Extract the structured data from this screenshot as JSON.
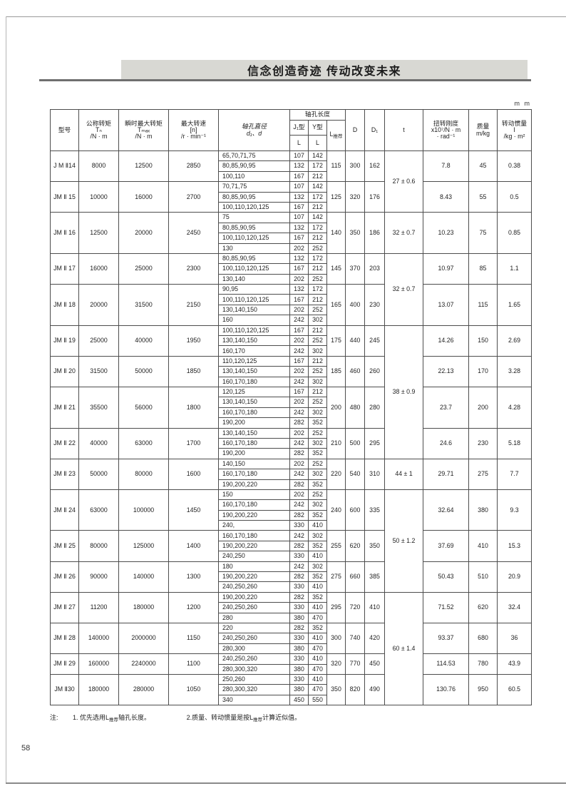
{
  "page": {
    "banner_title": "信念创造奇迹  传动改变未来",
    "unit": "m m",
    "number": "58"
  },
  "note": {
    "label": "注:",
    "item1_pre": "1.  优先选用L",
    "item1_sub": "推荐",
    "item1_post": "轴孔长度。",
    "item2_pre": "2.质量、转动惯量是按L",
    "item2_sub": "推荐",
    "item2_post": "计算近似值。"
  },
  "table": {
    "headers": {
      "model": "型号",
      "nominal": {
        "l1": "公称转矩",
        "l2": "Tₙ",
        "l3": "/N · m"
      },
      "max_torque": {
        "l1": "瞬时最大转矩",
        "l2": "Tₘₐₓ",
        "l3": "/N · m"
      },
      "speed": {
        "l1": "最大转速",
        "l2": "[n]",
        "l3": "/r · min⁻¹"
      },
      "bore_dia": {
        "l1": "轴孔直径",
        "l2": "d₁、d"
      },
      "bore_len": "轴孔长度",
      "j_type": "J₁型",
      "y_type": "Y型",
      "L": "L",
      "l_rec_main": "L",
      "l_rec_sub": "推荐",
      "D": "D",
      "D1": "D₁",
      "t": "t",
      "stiffness": {
        "l1": "扭转刚度",
        "l2": "x10⁷/N · m",
        "l3": "· rad⁻¹"
      },
      "mass": {
        "l1": "质量",
        "l2": "m/kg"
      },
      "inertia": {
        "l1": "转动惯量",
        "l2": "I",
        "l3": "/kg · m²"
      }
    },
    "t_spans": [
      {
        "value": "27 ± 0.6",
        "groups": [
          0,
          1
        ]
      },
      {
        "value": "32 ± 0.7",
        "groups": [
          2
        ]
      },
      {
        "value": "32 ± 0.7",
        "groups": [
          3,
          4
        ]
      },
      {
        "value": "38 ± 0.9",
        "groups": [
          5,
          6,
          7,
          8
        ]
      },
      {
        "value": "44 ± 1",
        "groups": [
          9
        ]
      },
      {
        "value": "50 ± 1.2",
        "groups": [
          10,
          11,
          12
        ]
      },
      {
        "value": "60 ± 1.4",
        "groups": [
          13,
          14,
          15,
          16
        ]
      }
    ],
    "groups": [
      {
        "model": "J M Ⅱ14",
        "tn": "8000",
        "tmax": "12500",
        "speed": "2850",
        "bores": [
          [
            "65,70,71,75",
            "107",
            "142"
          ],
          [
            "80,85,90,95",
            "132",
            "172"
          ],
          [
            "100,110",
            "167",
            "212"
          ]
        ],
        "l_rec": "115",
        "D": "300",
        "D1": "162",
        "stiffness": "7.8",
        "mass": "45",
        "inertia": "0.38"
      },
      {
        "model": "JM Ⅱ 15",
        "tn": "10000",
        "tmax": "16000",
        "speed": "2700",
        "bores": [
          [
            "70,71,75",
            "107",
            "142"
          ],
          [
            "80,85,90,95",
            "132",
            "172"
          ],
          [
            "100,110,120,125",
            "167",
            "212"
          ]
        ],
        "l_rec": "125",
        "D": "320",
        "D1": "176",
        "stiffness": "8.43",
        "mass": "55",
        "inertia": "0.5"
      },
      {
        "model": "JM Ⅱ 16",
        "tn": "12500",
        "tmax": "20000",
        "speed": "2450",
        "bores": [
          [
            "75",
            "107",
            "142"
          ],
          [
            "80,85,90,95",
            "132",
            "172"
          ],
          [
            "100,110,120,125",
            "167",
            "212"
          ],
          [
            "130",
            "202",
            "252"
          ]
        ],
        "l_rec": "140",
        "D": "350",
        "D1": "186",
        "stiffness": "10.23",
        "mass": "75",
        "inertia": "0.85"
      },
      {
        "model": "JM Ⅱ 17",
        "tn": "16000",
        "tmax": "25000",
        "speed": "2300",
        "bores": [
          [
            "80,85,90,95",
            "132",
            "172"
          ],
          [
            "100,110,120,125",
            "167",
            "212"
          ],
          [
            "130,140",
            "202",
            "252"
          ]
        ],
        "l_rec": "145",
        "D": "370",
        "D1": "203",
        "stiffness": "10.97",
        "mass": "85",
        "inertia": "1.1"
      },
      {
        "model": "JM Ⅱ 18",
        "tn": "20000",
        "tmax": "31500",
        "speed": "2150",
        "bores": [
          [
            "90,95",
            "132",
            "172"
          ],
          [
            "100,110,120,125",
            "167",
            "212"
          ],
          [
            "130,140,150",
            "202",
            "252"
          ],
          [
            "160",
            "242",
            "302"
          ]
        ],
        "l_rec": "165",
        "D": "400",
        "D1": "230",
        "stiffness": "13.07",
        "mass": "115",
        "inertia": "1.65"
      },
      {
        "model": "JM Ⅱ 19",
        "tn": "25000",
        "tmax": "40000",
        "speed": "1950",
        "bores": [
          [
            "100,110,120,125",
            "167",
            "212"
          ],
          [
            "130,140,150",
            "202",
            "252"
          ],
          [
            "160,170",
            "242",
            "302"
          ]
        ],
        "l_rec": "175",
        "D": "440",
        "D1": "245",
        "stiffness": "14.26",
        "mass": "150",
        "inertia": "2.69"
      },
      {
        "model": "JM Ⅱ 20",
        "tn": "31500",
        "tmax": "50000",
        "speed": "1850",
        "bores": [
          [
            "110,120,125",
            "167",
            "212"
          ],
          [
            "130,140,150",
            "202",
            "252"
          ],
          [
            "160,170,180",
            "242",
            "302"
          ]
        ],
        "l_rec": "185",
        "D": "460",
        "D1": "260",
        "stiffness": "22.13",
        "mass": "170",
        "inertia": "3.28"
      },
      {
        "model": "JM Ⅱ 21",
        "tn": "35500",
        "tmax": "56000",
        "speed": "1800",
        "bores": [
          [
            "120,125",
            "167",
            "212"
          ],
          [
            "130,140,150",
            "202",
            "252"
          ],
          [
            "160,170,180",
            "242",
            "302"
          ],
          [
            "190,200",
            "282",
            "352"
          ]
        ],
        "l_rec": "200",
        "D": "480",
        "D1": "280",
        "stiffness": "23.7",
        "mass": "200",
        "inertia": "4.28"
      },
      {
        "model": "JM Ⅱ 22",
        "tn": "40000",
        "tmax": "63000",
        "speed": "1700",
        "bores": [
          [
            "130,140,150",
            "202",
            "252"
          ],
          [
            "160,170,180",
            "242",
            "302"
          ],
          [
            "190,200",
            "282",
            "352"
          ]
        ],
        "l_rec": "210",
        "D": "500",
        "D1": "295",
        "stiffness": "24.6",
        "mass": "230",
        "inertia": "5.18"
      },
      {
        "model": "JM Ⅱ 23",
        "tn": "50000",
        "tmax": "80000",
        "speed": "1600",
        "bores": [
          [
            "140,150",
            "202",
            "252"
          ],
          [
            "160,170,180",
            "242",
            "302"
          ],
          [
            "190,200,220",
            "282",
            "352"
          ]
        ],
        "l_rec": "220",
        "D": "540",
        "D1": "310",
        "stiffness": "29.71",
        "mass": "275",
        "inertia": "7.7"
      },
      {
        "model": "JM Ⅱ 24",
        "tn": "63000",
        "tmax": "100000",
        "speed": "1450",
        "bores": [
          [
            "150",
            "202",
            "252"
          ],
          [
            "160,170,180",
            "242",
            "302"
          ],
          [
            "190,200,220",
            "282",
            "352"
          ],
          [
            "240,",
            "330",
            "410"
          ]
        ],
        "l_rec": "240",
        "D": "600",
        "D1": "335",
        "stiffness": "32.64",
        "mass": "380",
        "inertia": "9.3"
      },
      {
        "model": "JM Ⅱ 25",
        "tn": "80000",
        "tmax": "125000",
        "speed": "1400",
        "bores": [
          [
            "160,170,180",
            "242",
            "302"
          ],
          [
            "190,200,220",
            "282",
            "352"
          ],
          [
            "240,250",
            "330",
            "410"
          ]
        ],
        "l_rec": "255",
        "D": "620",
        "D1": "350",
        "stiffness": "37.69",
        "mass": "410",
        "inertia": "15.3"
      },
      {
        "model": "JM Ⅱ 26",
        "tn": "90000",
        "tmax": "140000",
        "speed": "1300",
        "bores": [
          [
            "180",
            "242",
            "302"
          ],
          [
            "190,200,220",
            "282",
            "352"
          ],
          [
            "240,250,260",
            "330",
            "410"
          ]
        ],
        "l_rec": "275",
        "D": "660",
        "D1": "385",
        "stiffness": "50.43",
        "mass": "510",
        "inertia": "20.9"
      },
      {
        "model": "JM Ⅱ 27",
        "tn": "11200",
        "tmax": "180000",
        "speed": "1200",
        "bores": [
          [
            "190,200,220",
            "282",
            "352"
          ],
          [
            "240,250,260",
            "330",
            "410"
          ],
          [
            "280",
            "380",
            "470"
          ]
        ],
        "l_rec": "295",
        "D": "720",
        "D1": "410",
        "stiffness": "71.52",
        "mass": "620",
        "inertia": "32.4"
      },
      {
        "model": "JM Ⅱ 28",
        "tn": "140000",
        "tmax": "2000000",
        "speed": "1150",
        "bores": [
          [
            "220",
            "282",
            "352"
          ],
          [
            "240,250,260",
            "330",
            "410"
          ],
          [
            "280,300",
            "380",
            "470"
          ]
        ],
        "l_rec": "300",
        "D": "740",
        "D1": "420",
        "stiffness": "93.37",
        "mass": "680",
        "inertia": "36"
      },
      {
        "model": "JM Ⅱ 29",
        "tn": "160000",
        "tmax": "2240000",
        "speed": "1100",
        "bores": [
          [
            "240,250,260",
            "330",
            "410"
          ],
          [
            "280,300,320",
            "380",
            "470"
          ]
        ],
        "l_rec": "320",
        "D": "770",
        "D1": "450",
        "stiffness": "114.53",
        "mass": "780",
        "inertia": "43.9"
      },
      {
        "model": "JM Ⅱ30",
        "tn": "180000",
        "tmax": "280000",
        "speed": "1050",
        "bores": [
          [
            "250,260",
            "330",
            "410"
          ],
          [
            "280,300,320",
            "380",
            "470"
          ],
          [
            "340",
            "450",
            "550"
          ]
        ],
        "l_rec": "350",
        "D": "820",
        "D1": "490",
        "stiffness": "130.76",
        "mass": "950",
        "inertia": "60.5"
      }
    ]
  }
}
